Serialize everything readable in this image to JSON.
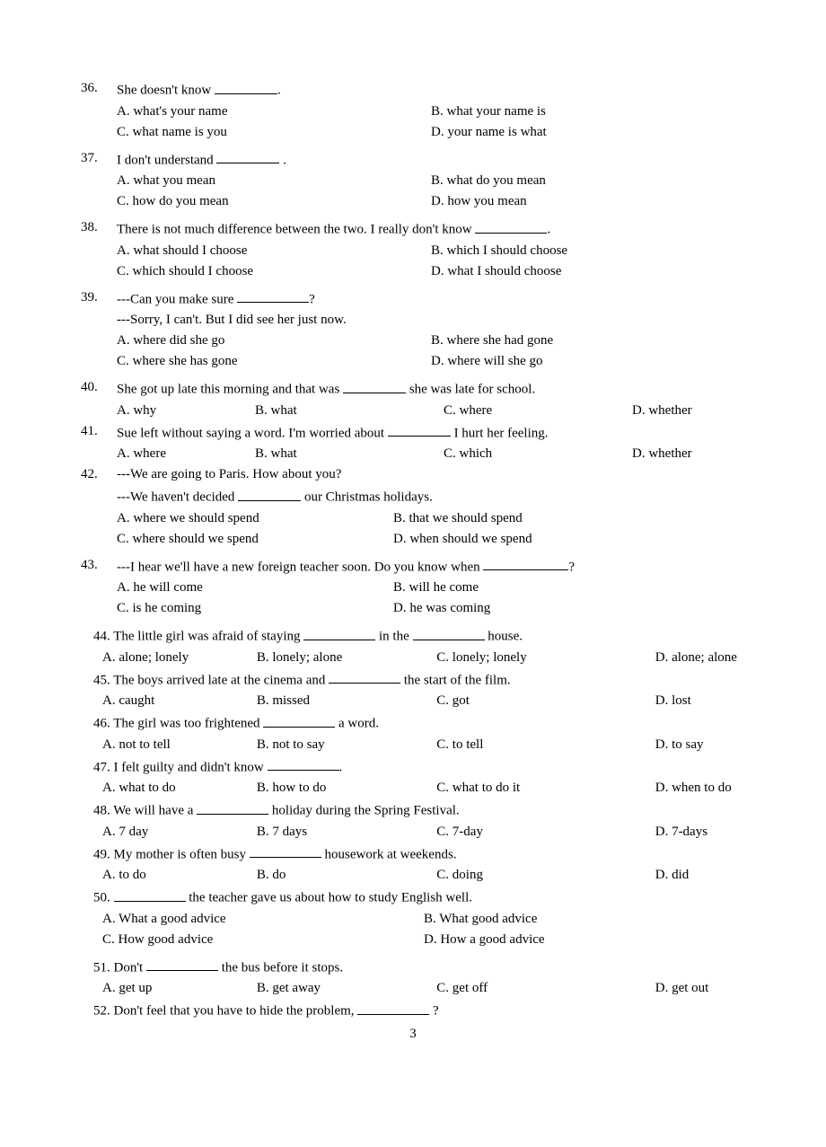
{
  "page_number": "3",
  "questions_numbered": [
    {
      "num": "36.",
      "stem_before": "She doesn't know ",
      "stem_after": ".",
      "blank_class": "blank-short",
      "option_layout": "2col",
      "options": [
        {
          "label": "A. what's your name",
          "col": ""
        },
        {
          "label": "B. what your name is",
          "col": ""
        },
        {
          "label": "C. what name is you",
          "col": ""
        },
        {
          "label": "D. your name is what",
          "col": ""
        }
      ]
    },
    {
      "num": "37.",
      "stem_before": "I don't understand ",
      "stem_after": " .",
      "blank_class": "blank-short",
      "option_layout": "2col",
      "options": [
        {
          "label": "A. what you mean"
        },
        {
          "label": "B. what do you mean"
        },
        {
          "label": "C. how do you mean"
        },
        {
          "label": "D. how you mean"
        }
      ]
    },
    {
      "num": "38.",
      "stem_before": "There is not much difference between the two. I really don't know ",
      "stem_after": ".",
      "blank_class": "blank-med",
      "option_layout": "2col",
      "options": [
        {
          "label": "A. what should I choose"
        },
        {
          "label": "B. which I should choose"
        },
        {
          "label": "C. which should I choose"
        },
        {
          "label": "D. what I should choose"
        }
      ]
    },
    {
      "num": "39.",
      "stem_before": "---Can you make sure ",
      "stem_after": "?",
      "blank_class": "blank-med",
      "stem2": "---Sorry, I can't. But I did see her just now.",
      "option_layout": "2col",
      "options": [
        {
          "label": "A. where did she go"
        },
        {
          "label": "B. where she had gone"
        },
        {
          "label": "C. where she has gone"
        },
        {
          "label": "D. where will she go"
        }
      ]
    },
    {
      "num": "40.",
      "stem_before": "She got up late this morning and that was ",
      "stem_after": " she was late for school.",
      "blank_class": "blank-short",
      "option_layout": "4col",
      "options": [
        {
          "label": "A. why",
          "col": "optA"
        },
        {
          "label": "B. what",
          "col": "optB"
        },
        {
          "label": "C. where",
          "col": "optC"
        },
        {
          "label": "D. whether",
          "col": "optD"
        }
      ]
    },
    {
      "num": "41.",
      "stem_before": "Sue left without saying a word. I'm worried about ",
      "stem_after": " I hurt her feeling.",
      "blank_class": "blank-short",
      "option_layout": "4col",
      "options": [
        {
          "label": "A. where",
          "col": "optA"
        },
        {
          "label": "B. what",
          "col": "optB"
        },
        {
          "label": "C. which",
          "col": "optC"
        },
        {
          "label": "D. whether",
          "col": "optD"
        }
      ]
    },
    {
      "num": "42.",
      "stem_before": "---We are going to Paris. How about you?",
      "no_blank": true,
      "stem2_before": "---We haven't decided ",
      "stem2_after": " our Christmas holidays.",
      "blank_class": "blank-short",
      "option_layout": "2col-wide",
      "options": [
        {
          "label": "A. where we should spend"
        },
        {
          "label": "B. that we should spend"
        },
        {
          "label": "C. where should we spend"
        },
        {
          "label": "D. when should we spend"
        }
      ]
    },
    {
      "num": "43.",
      "stem_before": "---I hear we'll have a new foreign teacher soon. Do you know when ",
      "stem_after": "?",
      "blank_class": "blank-long",
      "option_layout": "2col-wide",
      "options": [
        {
          "label": "A. he will come"
        },
        {
          "label": "B. will he come"
        },
        {
          "label": "C. is he coming"
        },
        {
          "label": "D. he was coming"
        }
      ]
    }
  ],
  "flat_questions": [
    {
      "num_and_before": "44.  The little girl was afraid of staying ",
      "mid": " in the ",
      "after": " house.",
      "blank1": "blank-med",
      "blank2": "blank-med",
      "options": [
        {
          "label": "A. alone; lonely",
          "col": "col1"
        },
        {
          "label": "B. lonely; alone",
          "col": "col2"
        },
        {
          "label": "C. lonely; lonely",
          "col": "col3"
        },
        {
          "label": "D. alone; alone",
          "col": "col4"
        }
      ]
    },
    {
      "num_and_before": "45. The boys arrived late at the cinema and ",
      "after": " the start of the film.",
      "blank1": "blank-med",
      "options": [
        {
          "label": "A. caught",
          "col": "col1"
        },
        {
          "label": "B. missed",
          "col": "col2"
        },
        {
          "label": "C. got",
          "col": "col3"
        },
        {
          "label": "D. lost",
          "col": "col4"
        }
      ]
    },
    {
      "num_and_before": "46. The girl was too frightened ",
      "after": " a word.",
      "blank1": "blank-med",
      "options": [
        {
          "label": "A. not to tell",
          "col": "col1"
        },
        {
          "label": "B. not to say",
          "col": "col2"
        },
        {
          "label": "C. to tell",
          "col": "col3"
        },
        {
          "label": "D. to say",
          "col": "col4"
        }
      ]
    },
    {
      "num_and_before": "47. I felt guilty and didn't know ",
      "after": ".",
      "blank1": "blank-med",
      "options": [
        {
          "label": "A. what to do",
          "col": "col1"
        },
        {
          "label": "B. how to do",
          "col": "col2"
        },
        {
          "label": "C. what to do it",
          "col": "col3"
        },
        {
          "label": "D. when to do",
          "col": "col4"
        }
      ]
    },
    {
      "num_and_before": "48. We will have a ",
      "after": " holiday during the Spring Festival.",
      "blank1": "blank-med",
      "options": [
        {
          "label": "A. 7 day",
          "col": "col1"
        },
        {
          "label": "B. 7 days",
          "col": "col2"
        },
        {
          "label": "C. 7-day",
          "col": "col3"
        },
        {
          "label": "D. 7-days",
          "col": "col4"
        }
      ]
    },
    {
      "num_and_before": "49. My mother is often busy ",
      "after": " housework at weekends.",
      "blank1": "blank-med",
      "options": [
        {
          "label": "A. to do",
          "col": "col1"
        },
        {
          "label": "B. do",
          "col": "col2"
        },
        {
          "label": "C. doing",
          "col": "col3"
        },
        {
          "label": "D. did",
          "col": "col4"
        }
      ]
    },
    {
      "num_and_before": "50. ",
      "after": " the teacher gave us about how to study English well.",
      "blank1": "blank-med",
      "option_layout": "2col",
      "options": [
        {
          "label": "A. What a good advice"
        },
        {
          "label": "B. What good advice"
        },
        {
          "label": "C. How good advice"
        },
        {
          "label": "D. How a good advice"
        }
      ]
    },
    {
      "num_and_before": "51. Don't ",
      "after": " the bus before it stops.",
      "blank1": "blank-med",
      "options": [
        {
          "label": "A. get up",
          "col": "col1"
        },
        {
          "label": "B. get away",
          "col": "col2"
        },
        {
          "label": "C. get off",
          "col": "col3"
        },
        {
          "label": "D. get out",
          "col": "col4"
        }
      ]
    },
    {
      "num_and_before": "52. Don't feel that you have to hide the problem, ",
      "after": " ?",
      "blank1": "blank-med",
      "no_options": true
    }
  ]
}
